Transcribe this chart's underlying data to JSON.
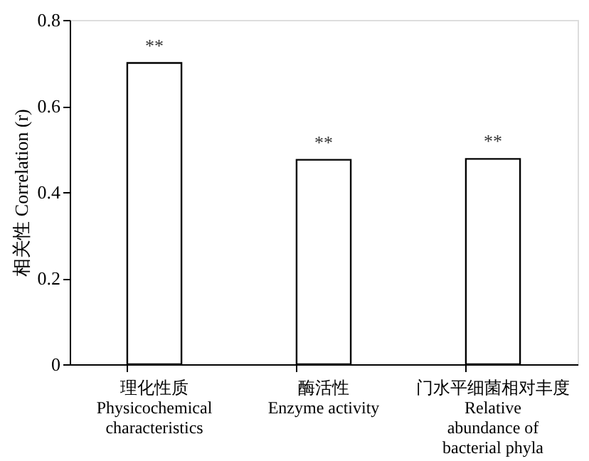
{
  "chart_data": {
    "type": "bar",
    "categories": [
      "理化性质\nPhysicochemical\ncharacteristics",
      "酶活性\nEnzyme activity",
      "门水平细菌相对丰度\nRelative\nabundance of\nbacterial phyla"
    ],
    "values": [
      0.7,
      0.475,
      0.477
    ],
    "color": "#ffffff",
    "ylabel": "相关性 Correlation (r)",
    "ylim": [
      0,
      0.8
    ],
    "yticks": [
      0,
      0.2,
      0.4,
      0.6,
      0.8
    ],
    "grid": false,
    "annotations": [
      {
        "text": "**",
        "x": "理化性质\nPhysicochemical\ncharacteristics",
        "y": 0.7
      },
      {
        "text": "**",
        "x": "酶活性\nEnzyme activity",
        "y": 0.475
      },
      {
        "text": "**",
        "x": "门水平细菌相对丰度\nRelative\nabundance of\nbacterial phyla",
        "y": 0.477
      }
    ]
  }
}
